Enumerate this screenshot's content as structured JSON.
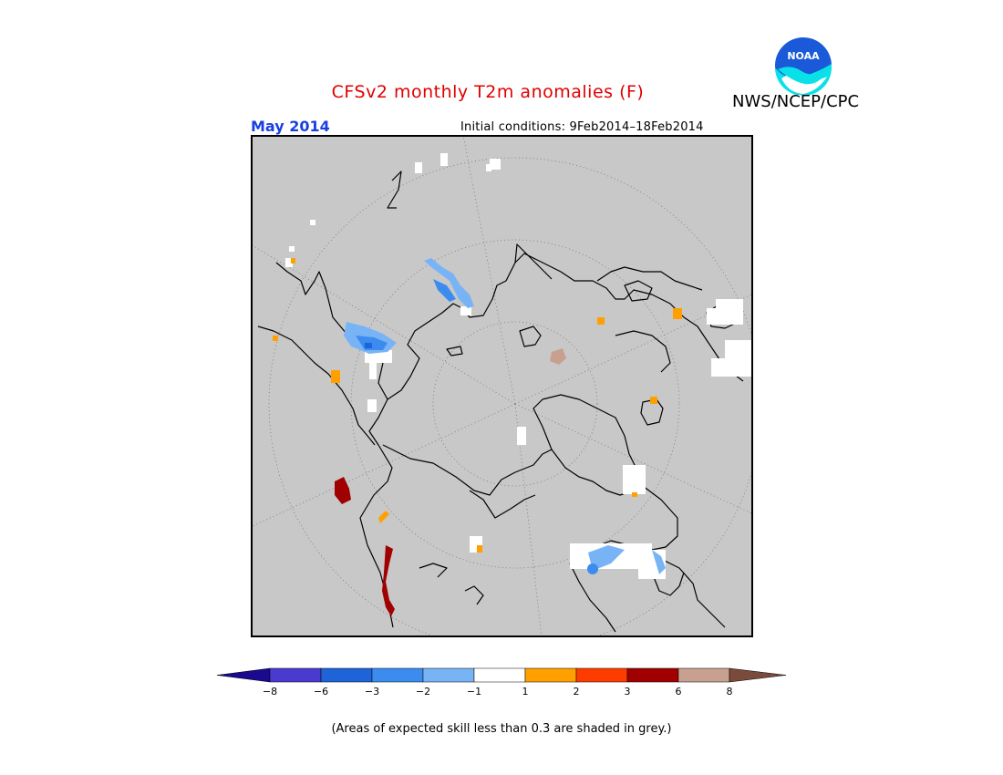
{
  "header": {
    "title": "CFSv2 monthly T2m anomalies (F)",
    "agency": "NWS/NCEP/CPC",
    "logo_text": "NOAA",
    "month": "May 2014",
    "initial_conditions": "Initial conditions: 9Feb2014–18Feb2014"
  },
  "legend": {
    "labels": [
      "−8",
      "−6",
      "−3",
      "−2",
      "−1",
      "1",
      "2",
      "3",
      "6",
      "8"
    ],
    "colors": [
      "#1a0a90",
      "#4a3ad0",
      "#1e64d8",
      "#3c8cf0",
      "#78b4f5",
      "#ffffff",
      "#ffa000",
      "#ff3c00",
      "#a00000",
      "#c8a090",
      "#7a4a3a"
    ],
    "note": "(Areas of expected skill less than 0.3 are shaded in grey.)"
  },
  "map": {
    "background_color": "#c8c8c8",
    "projection": "north polar stereographic",
    "grid": "dotted"
  }
}
